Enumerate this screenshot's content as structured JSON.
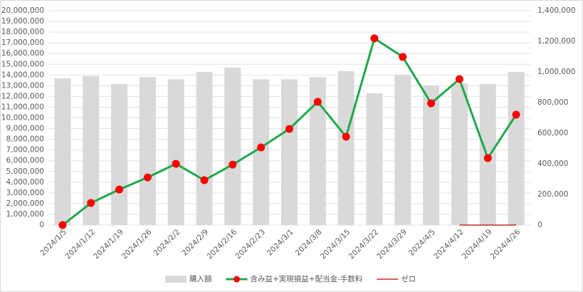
{
  "chart_data": {
    "type": "bar",
    "categories": [
      "2024/1/5",
      "2024/1/12",
      "2024/1/19",
      "2024/1/26",
      "2024/2/2",
      "2024/2/9",
      "2024/2/16",
      "2024/2/23",
      "2024/3/1",
      "2024/3/8",
      "2024/3/15",
      "2024/3/22",
      "2024/3/29",
      "2024/4/5",
      "2024/4/12",
      "2024/4/19",
      "2024/4/26"
    ],
    "series": [
      {
        "name": "購入額",
        "type": "bar",
        "color": "#d9d9d9",
        "values": [
          13700000,
          13900000,
          13150000,
          13800000,
          13600000,
          14300000,
          14700000,
          13600000,
          13600000,
          13800000,
          14350000,
          12300000,
          14000000,
          13000000,
          13200000,
          13150000,
          14300000
        ]
      },
      {
        "name": "含み益+実現損益+配当金-手数料",
        "type": "line",
        "axis": "y2",
        "color": "#1fa84a",
        "marker_color": "#ff0000",
        "values": [
          0,
          144000,
          232000,
          311000,
          400000,
          293000,
          395000,
          507000,
          628000,
          805000,
          577000,
          1219000,
          1098000,
          795000,
          953000,
          437000,
          721000
        ]
      },
      {
        "name": "ゼロ",
        "type": "line",
        "axis": "y2",
        "color": "#c00000",
        "values": [
          null,
          null,
          null,
          null,
          null,
          null,
          null,
          null,
          null,
          null,
          null,
          null,
          null,
          null,
          0,
          0,
          0
        ]
      }
    ],
    "ylim": [
      0,
      20000000
    ],
    "yticks": [
      {
        "value": 0,
        "label": "0"
      },
      {
        "value": 1000000,
        "label": "1,000,000"
      },
      {
        "value": 2000000,
        "label": "2,000,000"
      },
      {
        "value": 3000000,
        "label": "3,000,000"
      },
      {
        "value": 4000000,
        "label": "4,000,000"
      },
      {
        "value": 5000000,
        "label": "5,000,000"
      },
      {
        "value": 6000000,
        "label": "6,000,000"
      },
      {
        "value": 7000000,
        "label": "7,000,000"
      },
      {
        "value": 8000000,
        "label": "8,000,000"
      },
      {
        "value": 9000000,
        "label": "9,000,000"
      },
      {
        "value": 10000000,
        "label": "10,000,000"
      },
      {
        "value": 11000000,
        "label": "11,000,000"
      },
      {
        "value": 12000000,
        "label": "12,000,000"
      },
      {
        "value": 13000000,
        "label": "13,000,000"
      },
      {
        "value": 14000000,
        "label": "14,000,000"
      },
      {
        "value": 15000000,
        "label": "15,000,000"
      },
      {
        "value": 16000000,
        "label": "16,000,000"
      },
      {
        "value": 17000000,
        "label": "17,000,000"
      },
      {
        "value": 18000000,
        "label": "18,000,000"
      },
      {
        "value": 19000000,
        "label": "19,000,000"
      },
      {
        "value": 20000000,
        "label": "20,000,000"
      }
    ],
    "y2lim": [
      0,
      1400000
    ],
    "y2ticks": [
      {
        "value": 0,
        "label": "0"
      },
      {
        "value": 200000,
        "label": "200,000"
      },
      {
        "value": 400000,
        "label": "400,000"
      },
      {
        "value": 600000,
        "label": "600,000"
      },
      {
        "value": 800000,
        "label": "800,000"
      },
      {
        "value": 1000000,
        "label": "1,000,000"
      },
      {
        "value": 1200000,
        "label": "1,200,000"
      },
      {
        "value": 1400000,
        "label": "1,400,000"
      }
    ],
    "grid": true,
    "legend": "bottom"
  }
}
